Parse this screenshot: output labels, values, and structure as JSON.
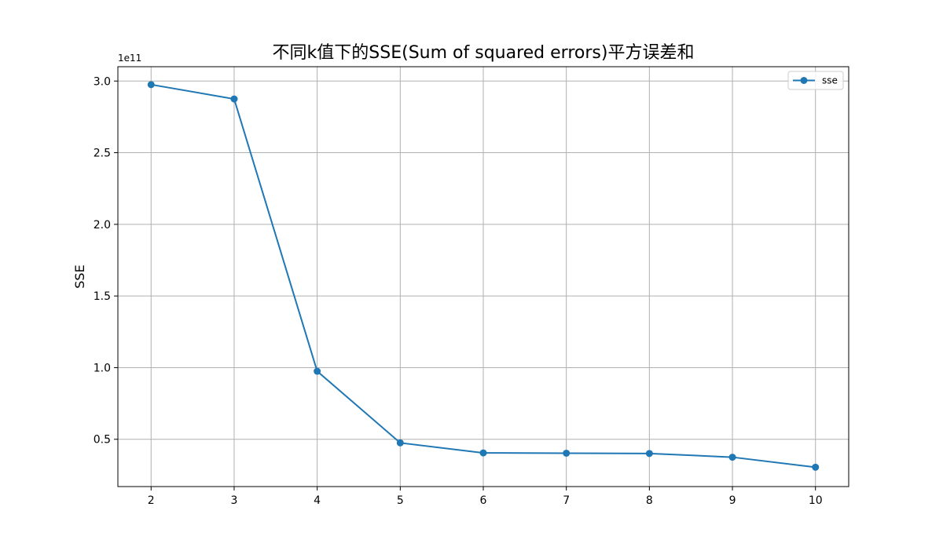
{
  "chart_data": {
    "type": "line",
    "title": "不同k值下的SSE(Sum of squared errors)平方误差和",
    "xlabel": "",
    "ylabel": "SSE",
    "y_offset_label": "1e11",
    "x": [
      2,
      3,
      4,
      5,
      6,
      7,
      8,
      9,
      10
    ],
    "series": [
      {
        "name": "sse",
        "values": [
          2.975,
          2.875,
          0.975,
          0.475,
          0.405,
          0.403,
          0.401,
          0.375,
          0.305
        ],
        "color": "#1f77b4",
        "marker": "circle"
      }
    ],
    "xlim": [
      1.6,
      10.4
    ],
    "ylim": [
      0.17,
      3.1
    ],
    "x_ticks": [
      2,
      3,
      4,
      5,
      6,
      7,
      8,
      9,
      10
    ],
    "y_ticks": [
      0.5,
      1.0,
      1.5,
      2.0,
      2.5,
      3.0
    ],
    "y_tick_labels": [
      "0.5",
      "1.0",
      "1.5",
      "2.0",
      "2.5",
      "3.0"
    ],
    "grid": true,
    "legend_position": "top-right"
  }
}
